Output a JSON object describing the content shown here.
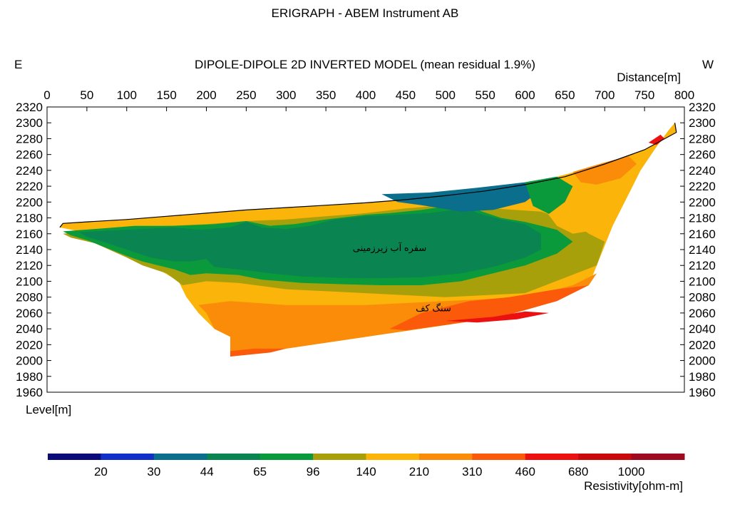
{
  "chart_data": {
    "type": "heatmap",
    "title": "ERIGRAPH - ABEM Instrument AB",
    "subtitle": "DIPOLE-DIPOLE 2D INVERTED MODEL (mean residual 1.9%)",
    "orientation_left": "E",
    "orientation_right": "W",
    "xlabel": "Distance[m]",
    "ylabel": "Level[m]",
    "x_ticks": [
      0,
      50,
      100,
      150,
      200,
      250,
      300,
      350,
      400,
      450,
      500,
      550,
      600,
      650,
      700,
      750,
      800
    ],
    "y_ticks": [
      2320,
      2300,
      2280,
      2260,
      2240,
      2220,
      2200,
      2180,
      2160,
      2140,
      2120,
      2100,
      2080,
      2060,
      2040,
      2020,
      2000,
      1980,
      1960
    ],
    "xlim": [
      0,
      800
    ],
    "ylim": [
      1960,
      2320
    ],
    "surface_profile": [
      [
        16,
        2168
      ],
      [
        20,
        2173
      ],
      [
        50,
        2175
      ],
      [
        100,
        2178
      ],
      [
        150,
        2182
      ],
      [
        200,
        2186
      ],
      [
        250,
        2190
      ],
      [
        300,
        2193
      ],
      [
        350,
        2196
      ],
      [
        400,
        2199
      ],
      [
        450,
        2203
      ],
      [
        500,
        2208
      ],
      [
        550,
        2214
      ],
      [
        600,
        2222
      ],
      [
        650,
        2232
      ],
      [
        700,
        2248
      ],
      [
        750,
        2266
      ],
      [
        790,
        2288
      ],
      [
        788,
        2300
      ]
    ],
    "model_bottom": [
      [
        788,
        2300
      ],
      [
        780,
        2290
      ],
      [
        765,
        2270
      ],
      [
        745,
        2240
      ],
      [
        730,
        2210
      ],
      [
        710,
        2170
      ],
      [
        690,
        2120
      ],
      [
        680,
        2095
      ],
      [
        570,
        2055
      ],
      [
        300,
        2015
      ],
      [
        230,
        2005
      ],
      [
        230,
        2030
      ],
      [
        210,
        2040
      ],
      [
        190,
        2060
      ],
      [
        175,
        2080
      ],
      [
        165,
        2100
      ],
      [
        140,
        2115
      ],
      [
        120,
        2125
      ],
      [
        100,
        2135
      ],
      [
        80,
        2145
      ],
      [
        60,
        2155
      ],
      [
        40,
        2163
      ],
      [
        16,
        2168
      ]
    ],
    "zones": [
      {
        "color_index": 6,
        "points": [
          [
            16,
            2168
          ],
          [
            20,
            2173
          ],
          [
            50,
            2175
          ],
          [
            100,
            2178
          ],
          [
            150,
            2182
          ],
          [
            200,
            2186
          ],
          [
            250,
            2190
          ],
          [
            300,
            2193
          ],
          [
            350,
            2196
          ],
          [
            400,
            2199
          ],
          [
            450,
            2203
          ],
          [
            500,
            2208
          ],
          [
            550,
            2214
          ],
          [
            600,
            2222
          ],
          [
            650,
            2232
          ],
          [
            700,
            2248
          ],
          [
            750,
            2266
          ],
          [
            790,
            2288
          ],
          [
            788,
            2300
          ],
          [
            780,
            2290
          ],
          [
            765,
            2270
          ],
          [
            745,
            2240
          ],
          [
            730,
            2210
          ],
          [
            710,
            2170
          ],
          [
            690,
            2120
          ],
          [
            680,
            2095
          ],
          [
            570,
            2055
          ],
          [
            300,
            2015
          ],
          [
            230,
            2005
          ],
          [
            230,
            2030
          ],
          [
            210,
            2040
          ],
          [
            190,
            2060
          ],
          [
            175,
            2080
          ],
          [
            165,
            2100
          ],
          [
            140,
            2115
          ],
          [
            120,
            2125
          ],
          [
            100,
            2135
          ],
          [
            80,
            2145
          ],
          [
            60,
            2155
          ],
          [
            40,
            2163
          ]
        ]
      },
      {
        "color_index": 5,
        "points": [
          [
            20,
            2160
          ],
          [
            60,
            2164
          ],
          [
            100,
            2168
          ],
          [
            150,
            2170
          ],
          [
            200,
            2172
          ],
          [
            250,
            2176
          ],
          [
            300,
            2178
          ],
          [
            350,
            2182
          ],
          [
            400,
            2186
          ],
          [
            450,
            2192
          ],
          [
            500,
            2196
          ],
          [
            540,
            2198
          ],
          [
            560,
            2192
          ],
          [
            620,
            2188
          ],
          [
            660,
            2175
          ],
          [
            680,
            2160
          ],
          [
            700,
            2150
          ],
          [
            690,
            2120
          ],
          [
            600,
            2085
          ],
          [
            500,
            2080
          ],
          [
            400,
            2085
          ],
          [
            300,
            2090
          ],
          [
            240,
            2098
          ],
          [
            200,
            2100
          ],
          [
            170,
            2095
          ],
          [
            150,
            2110
          ],
          [
            120,
            2120
          ],
          [
            100,
            2130
          ],
          [
            60,
            2148
          ],
          [
            30,
            2155
          ]
        ]
      },
      {
        "color_index": 4,
        "points": [
          [
            20,
            2163
          ],
          [
            60,
            2166
          ],
          [
            110,
            2170
          ],
          [
            160,
            2170
          ],
          [
            210,
            2172
          ],
          [
            250,
            2176
          ],
          [
            280,
            2170
          ],
          [
            310,
            2172
          ],
          [
            350,
            2178
          ],
          [
            400,
            2184
          ],
          [
            430,
            2186
          ],
          [
            470,
            2190
          ],
          [
            510,
            2196
          ],
          [
            540,
            2196
          ],
          [
            540,
            2190
          ],
          [
            555,
            2185
          ],
          [
            570,
            2180
          ],
          [
            600,
            2175
          ],
          [
            640,
            2165
          ],
          [
            660,
            2150
          ],
          [
            640,
            2135
          ],
          [
            600,
            2120
          ],
          [
            560,
            2110
          ],
          [
            520,
            2100
          ],
          [
            470,
            2095
          ],
          [
            420,
            2095
          ],
          [
            380,
            2096
          ],
          [
            320,
            2098
          ],
          [
            270,
            2102
          ],
          [
            240,
            2108
          ],
          [
            200,
            2110
          ],
          [
            180,
            2108
          ],
          [
            160,
            2115
          ],
          [
            120,
            2125
          ],
          [
            100,
            2132
          ],
          [
            80,
            2140
          ],
          [
            50,
            2152
          ],
          [
            30,
            2158
          ]
        ]
      },
      {
        "color_index": 3,
        "points": [
          [
            40,
            2162
          ],
          [
            80,
            2164
          ],
          [
            120,
            2166
          ],
          [
            160,
            2168
          ],
          [
            190,
            2165
          ],
          [
            230,
            2168
          ],
          [
            250,
            2175
          ],
          [
            270,
            2168
          ],
          [
            300,
            2166
          ],
          [
            330,
            2170
          ],
          [
            360,
            2178
          ],
          [
            400,
            2182
          ],
          [
            440,
            2184
          ],
          [
            480,
            2186
          ],
          [
            510,
            2190
          ],
          [
            530,
            2192
          ],
          [
            540,
            2186
          ],
          [
            570,
            2178
          ],
          [
            600,
            2172
          ],
          [
            620,
            2160
          ],
          [
            620,
            2140
          ],
          [
            600,
            2130
          ],
          [
            560,
            2118
          ],
          [
            520,
            2110
          ],
          [
            470,
            2105
          ],
          [
            420,
            2104
          ],
          [
            380,
            2104
          ],
          [
            320,
            2106
          ],
          [
            280,
            2110
          ],
          [
            250,
            2114
          ],
          [
            210,
            2118
          ],
          [
            200,
            2128
          ],
          [
            180,
            2125
          ],
          [
            160,
            2125
          ],
          [
            130,
            2130
          ],
          [
            100,
            2140
          ],
          [
            70,
            2150
          ],
          [
            50,
            2156
          ]
        ]
      },
      {
        "color_index": 2,
        "points": [
          [
            420,
            2210
          ],
          [
            480,
            2212
          ],
          [
            540,
            2218
          ],
          [
            600,
            2225
          ],
          [
            640,
            2232
          ],
          [
            620,
            2215
          ],
          [
            600,
            2200
          ],
          [
            560,
            2190
          ],
          [
            520,
            2188
          ],
          [
            470,
            2196
          ],
          [
            440,
            2200
          ]
        ]
      },
      {
        "color_index": 6,
        "points": [
          [
            640,
            2232
          ],
          [
            700,
            2248
          ],
          [
            750,
            2266
          ],
          [
            790,
            2288
          ],
          [
            788,
            2300
          ],
          [
            780,
            2290
          ],
          [
            765,
            2270
          ],
          [
            745,
            2240
          ],
          [
            730,
            2210
          ],
          [
            700,
            2175
          ],
          [
            690,
            2165
          ],
          [
            660,
            2160
          ],
          [
            640,
            2170
          ],
          [
            625,
            2190
          ],
          [
            630,
            2210
          ]
        ]
      },
      {
        "color_index": 7,
        "points": [
          [
            660,
            2238
          ],
          [
            700,
            2250
          ],
          [
            730,
            2258
          ],
          [
            740,
            2248
          ],
          [
            720,
            2230
          ],
          [
            690,
            2222
          ],
          [
            670,
            2225
          ]
        ]
      },
      {
        "color_index": 4,
        "points": [
          [
            600,
            2225
          ],
          [
            640,
            2232
          ],
          [
            660,
            2220
          ],
          [
            650,
            2200
          ],
          [
            630,
            2185
          ],
          [
            610,
            2195
          ]
        ]
      },
      {
        "color_index": 7,
        "points": [
          [
            230,
            2030
          ],
          [
            210,
            2040
          ],
          [
            200,
            2060
          ],
          [
            190,
            2070
          ],
          [
            230,
            2075
          ],
          [
            300,
            2070
          ],
          [
            400,
            2070
          ],
          [
            500,
            2075
          ],
          [
            600,
            2080
          ],
          [
            660,
            2095
          ],
          [
            690,
            2110
          ],
          [
            680,
            2095
          ],
          [
            570,
            2055
          ],
          [
            300,
            2015
          ],
          [
            230,
            2005
          ]
        ]
      },
      {
        "color_index": 8,
        "points": [
          [
            430,
            2040
          ],
          [
            470,
            2060
          ],
          [
            530,
            2075
          ],
          [
            580,
            2080
          ],
          [
            640,
            2090
          ],
          [
            680,
            2095
          ],
          [
            640,
            2075
          ],
          [
            570,
            2055
          ],
          [
            500,
            2045
          ],
          [
            450,
            2038
          ]
        ]
      },
      {
        "color_index": 9,
        "points": [
          [
            500,
            2050
          ],
          [
            560,
            2055
          ],
          [
            600,
            2062
          ],
          [
            630,
            2060
          ],
          [
            590,
            2052
          ],
          [
            540,
            2048
          ]
        ]
      },
      {
        "color_index": 8,
        "points": [
          [
            230,
            2005
          ],
          [
            230,
            2012
          ],
          [
            260,
            2015
          ],
          [
            300,
            2015
          ],
          [
            280,
            2010
          ]
        ]
      },
      {
        "color_index": 9,
        "points": [
          [
            755,
            2275
          ],
          [
            770,
            2285
          ],
          [
            775,
            2280
          ],
          [
            765,
            2272
          ]
        ]
      }
    ],
    "annotations": [
      {
        "text": "سفره آب زیرزمینی",
        "x": 430,
        "y": 2138
      },
      {
        "text": "سنگ کف",
        "x": 485,
        "y": 2062
      }
    ],
    "colorbar": {
      "label": "Resistivity[ohm-m]",
      "colors": [
        "#0a0a78",
        "#1030c8",
        "#0a6e8c",
        "#0a8450",
        "#0a9a3c",
        "#a8a00a",
        "#fbb40a",
        "#fb8c0a",
        "#fb5a0a",
        "#ec1010",
        "#c80a0a",
        "#a00a1e"
      ],
      "tick_labels": [
        "20",
        "30",
        "44",
        "65",
        "96",
        "140",
        "210",
        "310",
        "460",
        "680",
        "1000"
      ]
    }
  }
}
